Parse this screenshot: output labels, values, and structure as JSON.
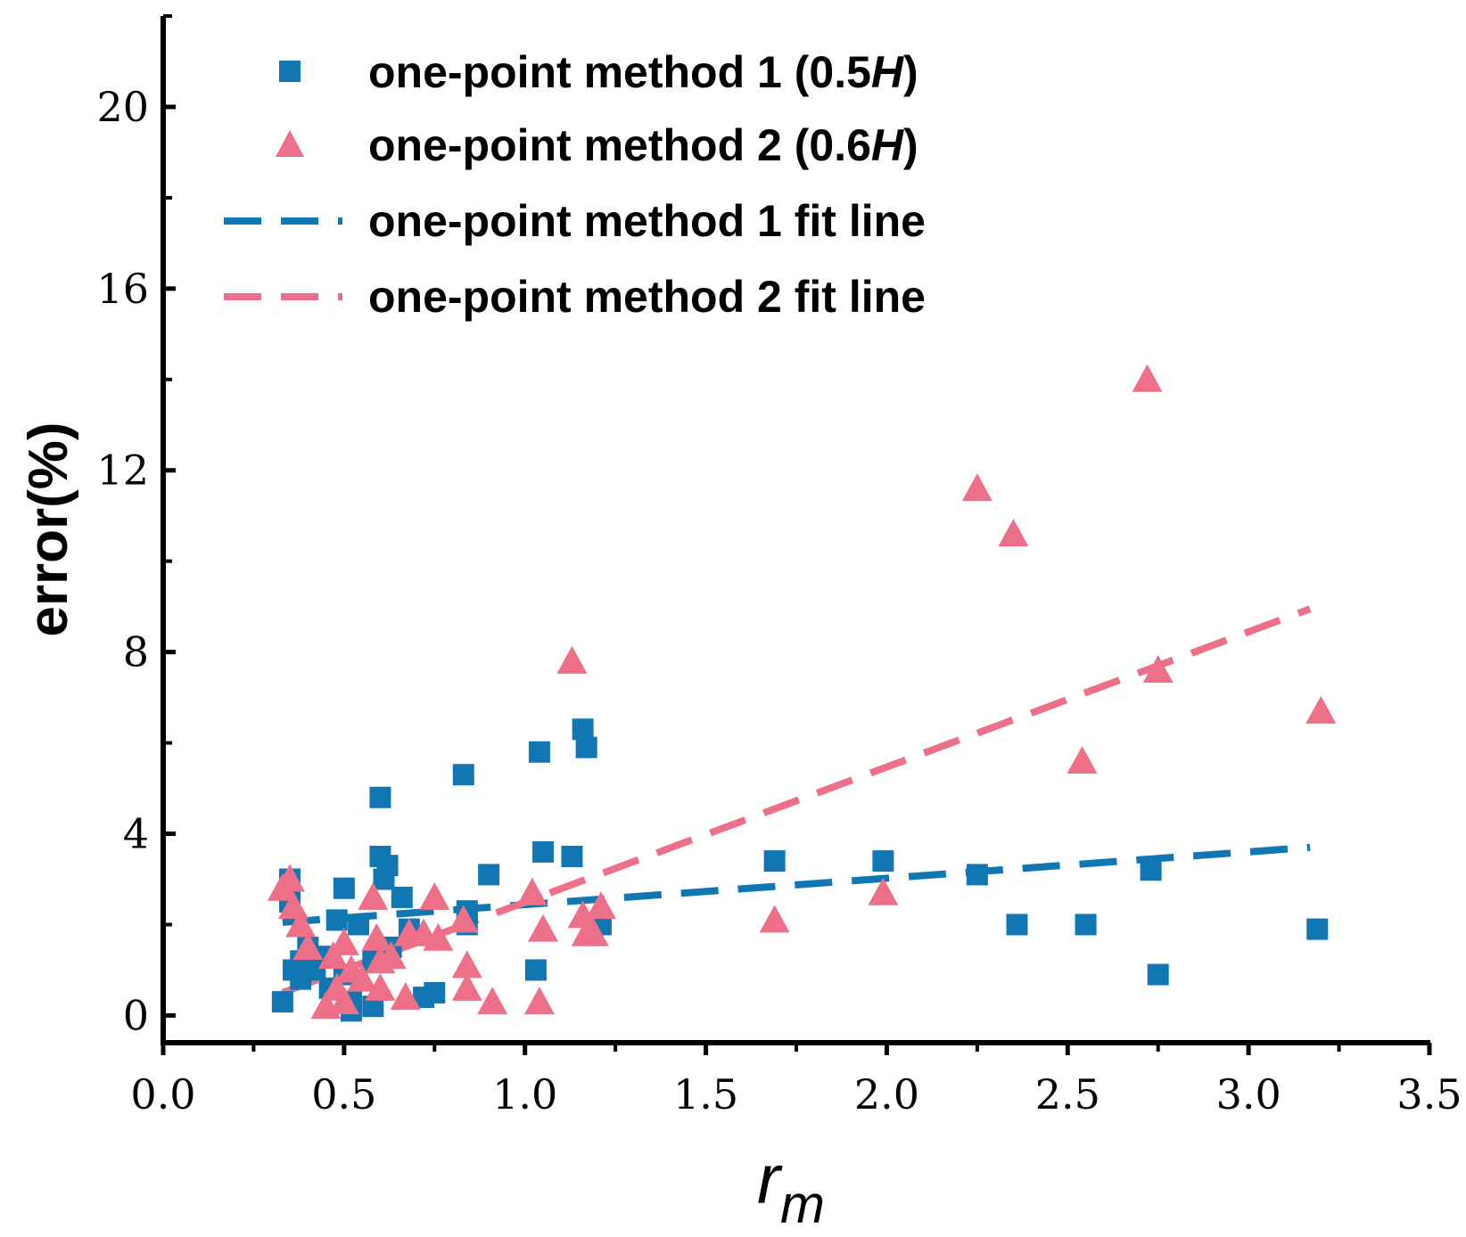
{
  "chart_data": {
    "type": "scatter",
    "title": "",
    "xlabel": "r",
    "xlabel_subscript": "m",
    "ylabel": "error(%)",
    "xlim": [
      0,
      3.5
    ],
    "ylim": [
      -0.6,
      22
    ],
    "x_ticks": [
      0.0,
      0.5,
      1.0,
      1.5,
      2.0,
      2.5,
      3.0,
      3.5
    ],
    "x_tick_labels": [
      "0.0",
      "0.5",
      "1.0",
      "1.5",
      "2.0",
      "2.5",
      "3.0",
      "3.5"
    ],
    "y_ticks": [
      0,
      4,
      8,
      12,
      16,
      20
    ],
    "y_tick_labels": [
      "0",
      "4",
      "8",
      "12",
      "16",
      "20"
    ],
    "legend_position": "top-left",
    "colors": {
      "method1": "#1177b3",
      "method2": "#ee7088"
    },
    "series": [
      {
        "name": "one-point method 1 (0.5H)",
        "legend_main": "one-point method 1 (0.5",
        "legend_italic": "H",
        "legend_tail": ")",
        "marker": "square",
        "color": "#1177b3",
        "points": [
          [
            0.33,
            0.3
          ],
          [
            0.35,
            3.0
          ],
          [
            0.35,
            2.5
          ],
          [
            0.36,
            1.0
          ],
          [
            0.38,
            0.8
          ],
          [
            0.38,
            1.2
          ],
          [
            0.4,
            1.5
          ],
          [
            0.42,
            1.0
          ],
          [
            0.45,
            1.3
          ],
          [
            0.46,
            0.6
          ],
          [
            0.48,
            2.1
          ],
          [
            0.5,
            2.8
          ],
          [
            0.5,
            0.9
          ],
          [
            0.52,
            0.3
          ],
          [
            0.52,
            0.1
          ],
          [
            0.54,
            2.0
          ],
          [
            0.58,
            1.2
          ],
          [
            0.58,
            0.2
          ],
          [
            0.6,
            4.8
          ],
          [
            0.6,
            3.5
          ],
          [
            0.62,
            3.3
          ],
          [
            0.61,
            3.0
          ],
          [
            0.63,
            1.5
          ],
          [
            0.66,
            2.6
          ],
          [
            0.68,
            1.9
          ],
          [
            0.72,
            0.4
          ],
          [
            0.75,
            0.5
          ],
          [
            0.83,
            5.3
          ],
          [
            0.84,
            2.3
          ],
          [
            0.84,
            2.0
          ],
          [
            0.9,
            3.1
          ],
          [
            1.03,
            1.0
          ],
          [
            1.04,
            5.8
          ],
          [
            1.05,
            3.6
          ],
          [
            1.13,
            3.5
          ],
          [
            1.16,
            6.3
          ],
          [
            1.17,
            5.9
          ],
          [
            1.21,
            2.0
          ],
          [
            1.69,
            3.4
          ],
          [
            1.99,
            3.4
          ],
          [
            2.25,
            3.1
          ],
          [
            2.36,
            2.0
          ],
          [
            2.55,
            2.0
          ],
          [
            2.73,
            3.2
          ],
          [
            2.75,
            0.9
          ],
          [
            3.19,
            1.9
          ]
        ]
      },
      {
        "name": "one-point method 2 (0.6H)",
        "legend_main": "one-point method 2 (0.6",
        "legend_italic": "H",
        "legend_tail": ")",
        "marker": "triangle",
        "color": "#ee7088",
        "points": [
          [
            0.33,
            2.8
          ],
          [
            0.35,
            3.0
          ],
          [
            0.36,
            2.4
          ],
          [
            0.38,
            2.0
          ],
          [
            0.4,
            1.5
          ],
          [
            0.45,
            0.2
          ],
          [
            0.47,
            1.3
          ],
          [
            0.48,
            0.6
          ],
          [
            0.5,
            1.6
          ],
          [
            0.5,
            0.3
          ],
          [
            0.52,
            1.0
          ],
          [
            0.55,
            0.8
          ],
          [
            0.58,
            2.6
          ],
          [
            0.59,
            1.7
          ],
          [
            0.6,
            1.2
          ],
          [
            0.6,
            0.6
          ],
          [
            0.63,
            1.3
          ],
          [
            0.67,
            0.4
          ],
          [
            0.68,
            1.8
          ],
          [
            0.72,
            1.8
          ],
          [
            0.75,
            2.6
          ],
          [
            0.76,
            1.7
          ],
          [
            0.83,
            2.1
          ],
          [
            0.84,
            1.1
          ],
          [
            0.84,
            0.6
          ],
          [
            0.91,
            0.3
          ],
          [
            1.02,
            2.7
          ],
          [
            1.04,
            0.3
          ],
          [
            1.05,
            1.9
          ],
          [
            1.13,
            7.8
          ],
          [
            1.16,
            2.2
          ],
          [
            1.17,
            1.8
          ],
          [
            1.19,
            1.8
          ],
          [
            1.21,
            2.4
          ],
          [
            1.69,
            2.1
          ],
          [
            1.99,
            2.7
          ],
          [
            2.25,
            11.6
          ],
          [
            2.35,
            10.6
          ],
          [
            2.54,
            5.6
          ],
          [
            2.72,
            14.0
          ],
          [
            2.75,
            7.6
          ],
          [
            3.2,
            6.7
          ]
        ]
      },
      {
        "name": "one-point method 1 fit line",
        "marker": "dashed-line",
        "color": "#1177b3",
        "points": [
          [
            0.33,
            2.05
          ],
          [
            3.17,
            3.7
          ]
        ]
      },
      {
        "name": "one-point method 2 fit line",
        "marker": "dashed-line",
        "color": "#ee7088",
        "points": [
          [
            0.33,
            0.5
          ],
          [
            3.17,
            8.95
          ]
        ]
      }
    ]
  }
}
